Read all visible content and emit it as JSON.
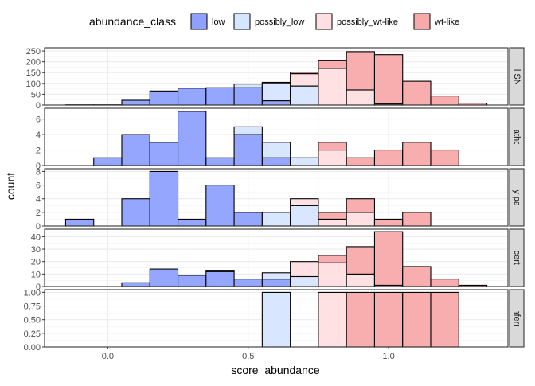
{
  "chart_data": {
    "type": "bar",
    "stacked": true,
    "xlabel": "score_abundance",
    "ylabel": "count",
    "x_ticks": [
      0.0,
      0.5,
      1.0
    ],
    "x_tick_labels": [
      "0.0",
      "0.5",
      "1.0"
    ],
    "xlim": [
      -0.225,
      1.425
    ],
    "bin_width": 0.1,
    "bin_centers": [
      -0.1,
      0.0,
      0.1,
      0.2,
      0.3,
      0.4,
      0.5,
      0.6,
      0.7,
      0.8,
      0.9,
      1.0,
      1.1,
      1.2,
      1.3
    ],
    "grid": true,
    "legend": {
      "title": "abundance_class",
      "position": "top",
      "entries": [
        {
          "name": "low",
          "color": "#8fa1ff"
        },
        {
          "name": "possibly_low",
          "color": "#d6e6ff"
        },
        {
          "name": "possibly_wt-like",
          "color": "#ffdfe2"
        },
        {
          "name": "wt-like",
          "color": "#f8aaaa"
        }
      ]
    },
    "facets": [
      {
        "label": "All SNV",
        "ylim": [
          0,
          265
        ],
        "y_ticks": [
          0,
          50,
          100,
          150,
          200,
          250
        ],
        "y_tick_labels": [
          "0",
          "50",
          "100",
          "150",
          "200",
          "250"
        ],
        "series": {
          "low": [
            1,
            1,
            22,
            65,
            78,
            80,
            80,
            20,
            0,
            0,
            0,
            0,
            0,
            0,
            0
          ],
          "possibly_low": [
            0,
            0,
            0,
            0,
            0,
            0,
            17,
            80,
            88,
            0,
            0,
            0,
            0,
            0,
            0
          ],
          "possibly_wt-like": [
            0,
            0,
            0,
            0,
            0,
            0,
            0,
            5,
            57,
            170,
            70,
            5,
            0,
            0,
            0
          ],
          "wt-like": [
            0,
            0,
            0,
            0,
            0,
            0,
            0,
            0,
            7,
            35,
            177,
            228,
            110,
            42,
            9
          ]
        }
      },
      {
        "label": "Pathog",
        "ylim": [
          0,
          7.4
        ],
        "y_ticks": [
          0,
          2,
          4,
          6
        ],
        "y_tick_labels": [
          "0",
          "2",
          "4",
          "6"
        ],
        "series": {
          "low": [
            0,
            1,
            4,
            3,
            7,
            1,
            4,
            1,
            0,
            0,
            0,
            0,
            0,
            0,
            0
          ],
          "possibly_low": [
            0,
            0,
            0,
            0,
            0,
            0,
            1,
            2,
            1,
            0,
            0,
            0,
            0,
            0,
            0
          ],
          "possibly_wt-like": [
            0,
            0,
            0,
            0,
            0,
            0,
            0,
            0,
            0,
            2,
            0,
            0,
            0,
            0,
            0
          ],
          "wt-like": [
            0,
            0,
            0,
            0,
            0,
            0,
            0,
            0,
            0,
            1,
            1,
            2,
            3,
            2,
            0
          ]
        }
      },
      {
        "label": "Likely pathog",
        "ylim": [
          0,
          8.4
        ],
        "y_ticks": [
          0,
          2,
          4,
          6,
          8
        ],
        "y_tick_labels": [
          "0",
          "2",
          "4",
          "6",
          "8"
        ],
        "series": {
          "low": [
            1,
            0,
            4,
            8,
            1,
            6,
            2,
            0,
            0,
            0,
            0,
            0,
            0,
            0,
            0
          ],
          "possibly_low": [
            0,
            0,
            0,
            0,
            0,
            0,
            0,
            2,
            3,
            0,
            0,
            0,
            0,
            0,
            0
          ],
          "possibly_wt-like": [
            0,
            0,
            0,
            0,
            0,
            0,
            0,
            0,
            1,
            1,
            2,
            0,
            0,
            0,
            0
          ],
          "wt-like": [
            0,
            0,
            0,
            0,
            0,
            0,
            0,
            0,
            0,
            1,
            2,
            1,
            2,
            0,
            0
          ]
        }
      },
      {
        "label": "Uncertain",
        "ylim": [
          0,
          46
        ],
        "y_ticks": [
          0,
          10,
          20,
          30,
          40
        ],
        "y_tick_labels": [
          "0",
          "10",
          "20",
          "30",
          "40"
        ],
        "series": {
          "low": [
            0,
            0,
            3,
            14,
            9,
            12,
            6,
            6,
            0,
            0,
            0,
            0,
            0,
            0,
            0
          ],
          "possibly_low": [
            0,
            0,
            0,
            0,
            0,
            1,
            0,
            5,
            8,
            0,
            0,
            0,
            0,
            0,
            0
          ],
          "possibly_wt-like": [
            0,
            0,
            0,
            0,
            0,
            0,
            0,
            0,
            12,
            19,
            10,
            1,
            0,
            0,
            0
          ],
          "wt-like": [
            0,
            0,
            0,
            0,
            0,
            0,
            0,
            0,
            0,
            6,
            22,
            43,
            16,
            6,
            1
          ]
        }
      },
      {
        "label": "AD inferred b",
        "ylim": [
          0,
          1.05
        ],
        "y_ticks": [
          0,
          0.25,
          0.5,
          0.75,
          1.0
        ],
        "y_tick_labels": [
          "0.00",
          "0.25",
          "0.50",
          "0.75",
          "1.00"
        ],
        "series": {
          "low": [
            0,
            0,
            0,
            0,
            0,
            0,
            0,
            0,
            0,
            0,
            0,
            0,
            0,
            0,
            0
          ],
          "possibly_low": [
            0,
            0,
            0,
            0,
            0,
            0,
            0,
            1,
            0,
            0,
            0,
            0,
            0,
            0,
            0
          ],
          "possibly_wt-like": [
            0,
            0,
            0,
            0,
            0,
            0,
            0,
            0,
            0,
            1,
            0,
            0,
            0,
            0,
            0
          ],
          "wt-like": [
            0,
            0,
            0,
            0,
            0,
            0,
            0,
            0,
            0,
            0,
            1,
            1,
            1,
            1,
            0
          ]
        }
      }
    ]
  }
}
